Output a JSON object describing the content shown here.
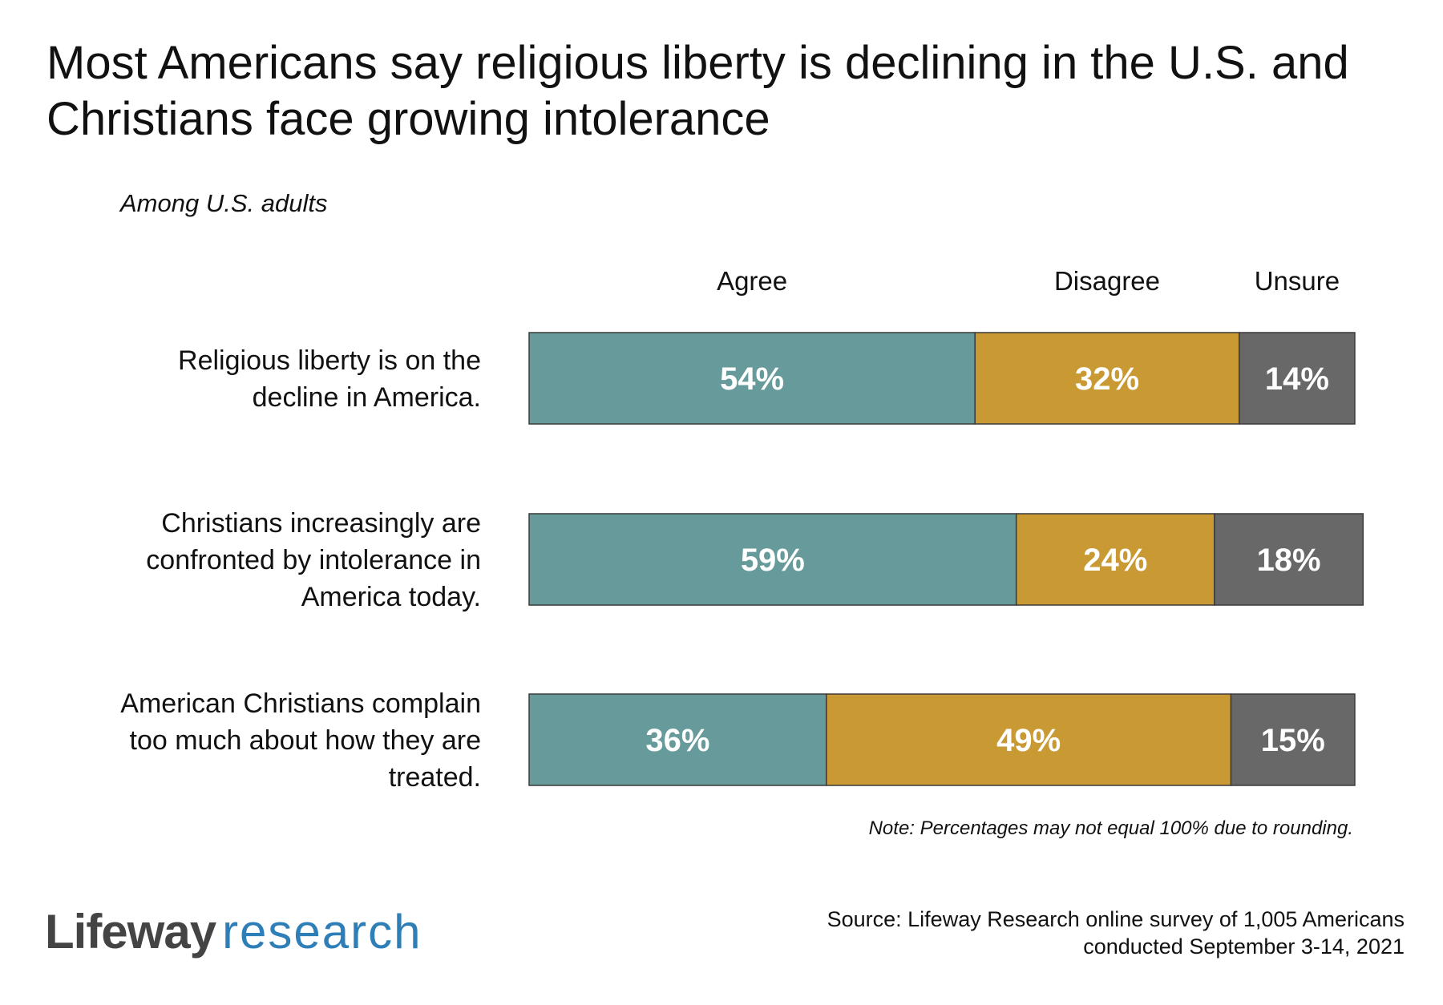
{
  "title_line1": "Most Americans say religious liberty is declining in the U.S. and",
  "title_line2": "Christians face growing intolerance",
  "subtitle": "Among U.S. adults",
  "note": "Note: Percentages may not equal 100% due to rounding.",
  "brand": {
    "name": "Lifeway",
    "sub": "research"
  },
  "source_line1": "Source: Lifeway Research online survey of 1,005 Americans",
  "source_line2": "conducted September 3-14, 2021",
  "colors": {
    "agree": "#679a9a",
    "disagree": "#c99a34",
    "unsure": "#686868",
    "border": "#3a3a3a"
  },
  "chart_data": {
    "type": "bar",
    "orientation": "horizontal",
    "stacked": true,
    "title": "Most Americans say religious liberty is declining in the U.S. and Christians face growing intolerance",
    "subtitle": "Among U.S. adults",
    "legend": [
      "Agree",
      "Disagree",
      "Unsure"
    ],
    "legend_position": "top",
    "categories": [
      {
        "lines": [
          "Religious liberty is on the",
          "decline in America."
        ]
      },
      {
        "lines": [
          "Christians increasingly are",
          "confronted by intolerance in",
          "America today."
        ]
      },
      {
        "lines": [
          "American Christians complain",
          "too much about how they are",
          "treated."
        ]
      }
    ],
    "series": [
      {
        "name": "Agree",
        "values": [
          54,
          59,
          36
        ],
        "labels": [
          "54%",
          "59%",
          "36%"
        ]
      },
      {
        "name": "Disagree",
        "values": [
          32,
          24,
          49
        ],
        "labels": [
          "32%",
          "24%",
          "49%"
        ]
      },
      {
        "name": "Unsure",
        "values": [
          14,
          18,
          15
        ],
        "labels": [
          "14%",
          "18%",
          "15%"
        ]
      }
    ],
    "xlim": [
      0,
      100
    ],
    "grid": false
  }
}
